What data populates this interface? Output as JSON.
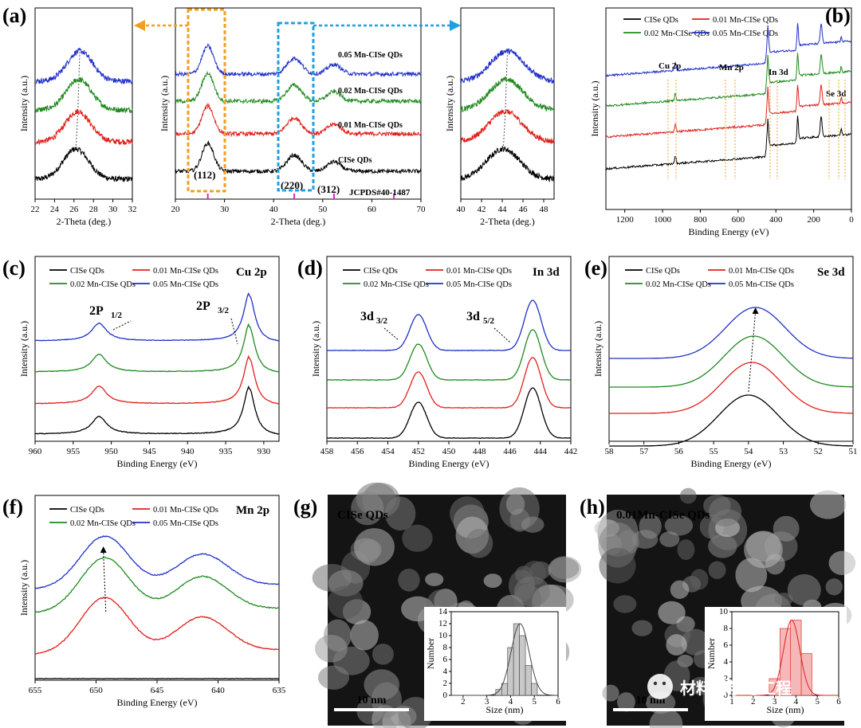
{
  "panels": {
    "a": "(a)",
    "b": "(b)",
    "c": "(c)",
    "d": "(d)",
    "e": "(e)",
    "f": "(f)",
    "g": "(g)",
    "h": "(h)"
  },
  "series_names": [
    "CISe QDs",
    "0.01 Mn-CISe QDs",
    "0.02 Mn-CISe QDs",
    "0.05 Mn-CISe QDs"
  ],
  "colors": {
    "cise": "#000000",
    "mn001": "#e0201b",
    "mn002": "#1f8a1f",
    "mn005": "#2030c8",
    "magenta": "#e020c8",
    "orange": "#f0a020",
    "cyan": "#20a0e0",
    "hist_gray": "#c8c8c8",
    "hist_pink": "#f4b8b8"
  },
  "watermark": "材料科学与工程",
  "chart_data": [
    {
      "id": "a_left",
      "type": "line",
      "xlabel": "2-Theta (deg.)",
      "ylabel": "Intensity (a.u.)",
      "xlim": [
        22,
        32
      ],
      "xticks": [
        22,
        24,
        26,
        28,
        30,
        32
      ],
      "series": [
        {
          "name": "CISe QDs",
          "peak": 26.2,
          "offset": 0
        },
        {
          "name": "0.01 Mn-CISe QDs",
          "peak": 26.4,
          "offset": 1
        },
        {
          "name": "0.02 Mn-CISe QDs",
          "peak": 26.5,
          "offset": 2
        },
        {
          "name": "0.05 Mn-CISe QDs",
          "peak": 26.6,
          "offset": 3
        }
      ]
    },
    {
      "id": "a_mid",
      "type": "line",
      "xlabel": "2-Theta (deg.)",
      "ylabel": "Intensity (a.u.)",
      "xlim": [
        20,
        70
      ],
      "xticks": [
        20,
        30,
        40,
        50,
        60,
        70
      ],
      "series_labels": [
        "0.05  Mn-CISe QDs",
        "0.02 Mn-CISe QDs",
        "0.01 Mn-CISe QDs",
        "CISe QDs"
      ],
      "peaks": [
        {
          "label": "(112)",
          "x": 26.6
        },
        {
          "label": "(220)",
          "x": 44.2
        },
        {
          "label": "(312)",
          "x": 52.3
        }
      ],
      "reference": {
        "label": "JCPDS#40-1487",
        "lines": [
          26.6,
          44.2,
          52.3,
          64.5
        ]
      }
    },
    {
      "id": "a_right",
      "type": "line",
      "xlabel": "2-Theta (deg.)",
      "ylabel": "Intensity (a.u.)",
      "xlim": [
        40,
        49
      ],
      "xticks": [
        40,
        42,
        44,
        46,
        48
      ],
      "series": [
        {
          "name": "CISe QDs",
          "peak": 44.1,
          "offset": 0
        },
        {
          "name": "0.01 Mn-CISe QDs",
          "peak": 44.3,
          "offset": 1
        },
        {
          "name": "0.02 Mn-CISe QDs",
          "peak": 44.4,
          "offset": 2
        },
        {
          "name": "0.05 Mn-CISe QDs",
          "peak": 44.5,
          "offset": 3
        }
      ]
    },
    {
      "id": "b",
      "type": "line",
      "xlabel": "Binding Energy (eV)",
      "ylabel": "Intensity (a.u.)",
      "xlim": [
        1300,
        0
      ],
      "xticks": [
        1200,
        1000,
        800,
        600,
        400,
        200,
        0
      ],
      "annotations": [
        "Cu 2p",
        "Mn 2p",
        "In 3d",
        "Se 3d"
      ]
    },
    {
      "id": "c",
      "type": "line",
      "title": "Cu 2p",
      "xlabel": "Binding Energy (eV)",
      "ylabel": "Intensity (a.u.)",
      "xlim": [
        960,
        928
      ],
      "xticks": [
        960,
        955,
        950,
        945,
        940,
        935,
        930
      ],
      "peaks": [
        {
          "label": "2P",
          "sub": "1/2",
          "x": 951.6
        },
        {
          "label": "2P",
          "sub": "3/2",
          "x": 931.9
        }
      ]
    },
    {
      "id": "d",
      "type": "line",
      "title": "In 3d",
      "xlabel": "Binding Energy (eV)",
      "ylabel": "Intensity (a.u.)",
      "xlim": [
        458,
        442
      ],
      "xticks": [
        458,
        456,
        454,
        452,
        450,
        448,
        446,
        444,
        442
      ],
      "peaks": [
        {
          "label": "3d",
          "sub": "3/2",
          "x": 452.0
        },
        {
          "label": "3d",
          "sub": "5/2",
          "x": 444.5
        }
      ]
    },
    {
      "id": "e",
      "type": "line",
      "title": "Se 3d",
      "xlabel": "Binding Energy (eV)",
      "ylabel": "Intensity (a.u.)",
      "xlim": [
        58,
        51
      ],
      "xticks": [
        58,
        57,
        56,
        55,
        54,
        53,
        52,
        51
      ],
      "peak_positions": [
        54.0,
        53.9,
        53.85,
        53.8
      ]
    },
    {
      "id": "f",
      "type": "line",
      "title": "Mn 2p",
      "xlabel": "Binding Energy (eV)",
      "ylabel": "Intensity (a.u.)",
      "xlim": [
        655,
        635
      ],
      "xticks": [
        655,
        650,
        645,
        640,
        635
      ],
      "peaks": [
        649.3,
        641.3
      ]
    },
    {
      "id": "g",
      "type": "bar",
      "image_label": "CISe QDs",
      "scale_bar": "10 nm",
      "xlabel": "Size (nm)",
      "ylabel": "Number",
      "xlim": [
        1.5,
        6
      ],
      "ylim": [
        0,
        14
      ],
      "xticks": [
        2,
        3,
        4,
        5,
        6
      ],
      "yticks": [
        0,
        2,
        4,
        6,
        8,
        10,
        12,
        14
      ],
      "bins": [
        3.5,
        3.75,
        4.0,
        4.25,
        4.5,
        4.75,
        5.0
      ],
      "counts": [
        1,
        2,
        8,
        12,
        10,
        5,
        2
      ],
      "fit_mean": 4.4
    },
    {
      "id": "h",
      "type": "bar",
      "image_label": "0.01Mn-CISe QDs",
      "scale_bar": "10 nm",
      "xlabel": "Size (nm)",
      "ylabel": "Number",
      "xlim": [
        1,
        6
      ],
      "ylim": [
        0,
        10
      ],
      "xticks": [
        1,
        2,
        3,
        4,
        5,
        6
      ],
      "yticks": [
        0,
        2,
        4,
        6,
        8,
        10
      ],
      "bins": [
        3.0,
        3.5,
        4.0,
        4.5
      ],
      "counts": [
        2,
        8,
        9,
        5
      ],
      "fit_mean": 3.8
    }
  ]
}
